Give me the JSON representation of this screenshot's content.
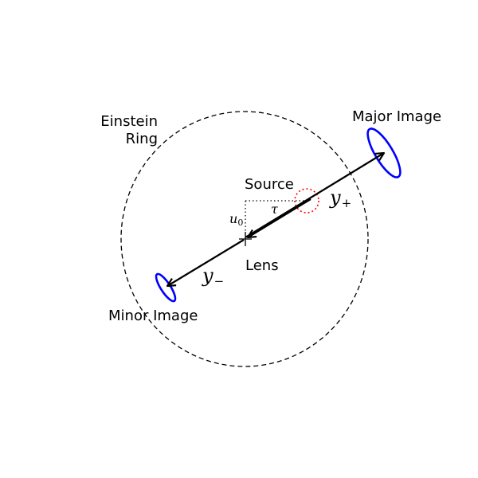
{
  "labels": {
    "einstein_ring_line1": "Einstein",
    "einstein_ring_line2": "Ring",
    "major_image": "Major Image",
    "minor_image": "Minor Image",
    "source": "Source",
    "lens": "Lens"
  },
  "math": {
    "y_plus_base": "y",
    "y_plus_sub": "+",
    "y_minus_base": "y",
    "y_minus_sub": "−",
    "tau": "τ",
    "u0_base": "u",
    "u0_sub": "0"
  },
  "colors": {
    "ring": "#000000",
    "images": "#0000ff",
    "source": "#ff0000",
    "arrows": "#000000"
  }
}
